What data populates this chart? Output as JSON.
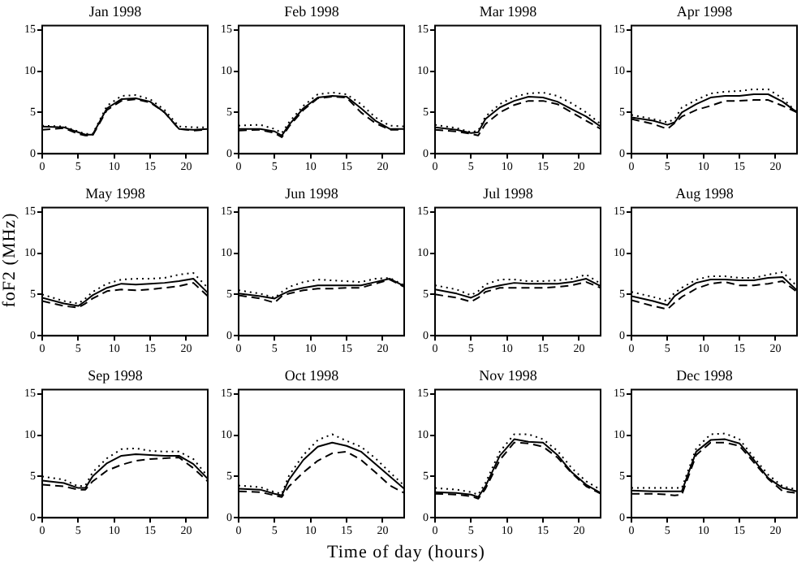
{
  "chart_data": [
    {
      "type": "line",
      "title": "Jan 1998",
      "x": [
        0,
        3,
        5,
        6,
        7,
        9,
        11,
        13,
        15,
        17,
        19,
        21,
        23
      ],
      "xlim": [
        0,
        23
      ],
      "xticks": [
        0,
        5,
        10,
        15,
        20
      ],
      "ylim": [
        0,
        15.5
      ],
      "yticks": [
        0,
        5,
        10,
        15
      ],
      "grid": false,
      "legend": false,
      "marker": "none",
      "series": [
        {
          "color": "#000000",
          "line_style": "solid",
          "values": [
            3.3,
            3.2,
            2.6,
            2.3,
            2.3,
            5.5,
            6.6,
            6.7,
            6.3,
            5.0,
            3.0,
            2.9,
            3.0
          ]
        },
        {
          "color": "#000000",
          "line_style": "dashed",
          "values": [
            2.9,
            3.1,
            2.4,
            2.2,
            2.2,
            5.3,
            6.4,
            6.6,
            6.2,
            5.0,
            3.0,
            2.8,
            2.9
          ]
        },
        {
          "color": "#000000",
          "line_style": "dotted",
          "values": [
            3.4,
            3.3,
            2.7,
            2.4,
            2.4,
            5.8,
            7.0,
            7.1,
            6.6,
            5.3,
            3.3,
            3.2,
            3.2
          ]
        }
      ]
    },
    {
      "type": "line",
      "title": "Feb 1998",
      "x": [
        0,
        3,
        5,
        6,
        7,
        9,
        11,
        13,
        15,
        17,
        19,
        21,
        23
      ],
      "xlim": [
        0,
        23
      ],
      "xticks": [
        0,
        5,
        10,
        15,
        20
      ],
      "ylim": [
        0,
        15.5
      ],
      "yticks": [
        0,
        5,
        10,
        15
      ],
      "grid": false,
      "legend": false,
      "marker": "none",
      "series": [
        {
          "color": "#000000",
          "line_style": "solid",
          "values": [
            3.0,
            3.0,
            2.7,
            2.2,
            3.5,
            5.5,
            6.8,
            7.0,
            6.9,
            5.5,
            4.0,
            3.0,
            3.0
          ]
        },
        {
          "color": "#000000",
          "line_style": "dashed",
          "values": [
            2.8,
            2.9,
            2.5,
            2.0,
            3.3,
            5.3,
            6.7,
            6.9,
            6.8,
            5.0,
            3.7,
            2.9,
            2.9
          ]
        },
        {
          "color": "#000000",
          "line_style": "dotted",
          "values": [
            3.4,
            3.5,
            3.0,
            2.5,
            3.8,
            5.8,
            7.2,
            7.4,
            7.2,
            6.0,
            4.4,
            3.4,
            3.3
          ]
        }
      ]
    },
    {
      "type": "line",
      "title": "Mar 1998",
      "x": [
        0,
        3,
        5,
        6,
        7,
        9,
        11,
        13,
        15,
        17,
        19,
        21,
        23
      ],
      "xlim": [
        0,
        23
      ],
      "xticks": [
        0,
        5,
        10,
        15,
        20
      ],
      "ylim": [
        0,
        15.5
      ],
      "yticks": [
        0,
        5,
        10,
        15
      ],
      "grid": false,
      "legend": false,
      "marker": "none",
      "series": [
        {
          "color": "#000000",
          "line_style": "solid",
          "values": [
            3.2,
            2.9,
            2.5,
            2.6,
            4.2,
            5.6,
            6.4,
            6.9,
            6.8,
            6.3,
            5.4,
            4.5,
            3.3
          ]
        },
        {
          "color": "#000000",
          "line_style": "dashed",
          "values": [
            2.9,
            2.7,
            2.4,
            2.2,
            3.6,
            5.0,
            5.9,
            6.4,
            6.4,
            6.0,
            5.0,
            4.0,
            3.0
          ]
        },
        {
          "color": "#000000",
          "line_style": "dotted",
          "values": [
            3.5,
            3.1,
            2.6,
            2.8,
            4.5,
            6.0,
            6.9,
            7.3,
            7.4,
            7.0,
            6.1,
            5.0,
            3.6
          ]
        }
      ]
    },
    {
      "type": "line",
      "title": "Apr 1998",
      "x": [
        0,
        3,
        5,
        6,
        7,
        9,
        11,
        13,
        15,
        17,
        19,
        21,
        23
      ],
      "xlim": [
        0,
        23
      ],
      "xticks": [
        0,
        5,
        10,
        15,
        20
      ],
      "ylim": [
        0,
        15.5
      ],
      "yticks": [
        0,
        5,
        10,
        15
      ],
      "grid": false,
      "legend": false,
      "marker": "none",
      "series": [
        {
          "color": "#000000",
          "line_style": "solid",
          "values": [
            4.4,
            4.0,
            3.5,
            3.8,
            5.0,
            6.0,
            6.8,
            7.0,
            7.0,
            7.2,
            7.2,
            6.3,
            5.0
          ]
        },
        {
          "color": "#000000",
          "line_style": "dashed",
          "values": [
            4.2,
            3.6,
            3.0,
            3.7,
            4.5,
            5.3,
            5.8,
            6.4,
            6.4,
            6.5,
            6.5,
            5.8,
            5.0
          ]
        },
        {
          "color": "#000000",
          "line_style": "dotted",
          "values": [
            4.7,
            4.2,
            3.8,
            4.2,
            5.6,
            6.5,
            7.3,
            7.5,
            7.6,
            7.8,
            7.8,
            6.7,
            5.0
          ]
        }
      ]
    },
    {
      "type": "line",
      "title": "May 1998",
      "ylabel": "foF2 (MHz)",
      "x": [
        0,
        3,
        5,
        6,
        7,
        9,
        11,
        13,
        15,
        17,
        19,
        21,
        23
      ],
      "xlim": [
        0,
        23
      ],
      "xticks": [
        0,
        5,
        10,
        15,
        20
      ],
      "ylim": [
        0,
        15.5
      ],
      "yticks": [
        0,
        5,
        10,
        15
      ],
      "grid": false,
      "legend": false,
      "marker": "none",
      "series": [
        {
          "color": "#000000",
          "line_style": "solid",
          "values": [
            4.6,
            3.9,
            3.6,
            4.2,
            4.9,
            5.8,
            6.3,
            6.2,
            6.3,
            6.4,
            6.6,
            6.9,
            5.2
          ]
        },
        {
          "color": "#000000",
          "line_style": "dashed",
          "values": [
            4.2,
            3.6,
            3.4,
            3.9,
            4.5,
            5.4,
            5.6,
            5.5,
            5.6,
            5.8,
            6.0,
            6.4,
            4.8
          ]
        },
        {
          "color": "#000000",
          "line_style": "dotted",
          "values": [
            5.0,
            4.2,
            3.9,
            4.5,
            5.3,
            6.3,
            6.8,
            6.9,
            6.9,
            7.0,
            7.4,
            7.6,
            5.8
          ]
        }
      ]
    },
    {
      "type": "line",
      "title": "Jun 1998",
      "x": [
        0,
        3,
        5,
        6,
        7,
        9,
        11,
        13,
        15,
        17,
        19,
        21,
        23
      ],
      "xlim": [
        0,
        23
      ],
      "xticks": [
        0,
        5,
        10,
        15,
        20
      ],
      "ylim": [
        0,
        15.5
      ],
      "yticks": [
        0,
        5,
        10,
        15
      ],
      "grid": false,
      "legend": false,
      "marker": "none",
      "series": [
        {
          "color": "#000000",
          "line_style": "solid",
          "values": [
            5.1,
            4.8,
            4.5,
            5.0,
            5.4,
            5.8,
            6.1,
            6.1,
            6.1,
            6.1,
            6.5,
            6.9,
            6.0
          ]
        },
        {
          "color": "#000000",
          "line_style": "dashed",
          "values": [
            4.9,
            4.5,
            4.0,
            4.8,
            5.1,
            5.5,
            5.7,
            5.7,
            5.8,
            5.8,
            6.3,
            6.8,
            5.9
          ]
        },
        {
          "color": "#000000",
          "line_style": "dotted",
          "values": [
            5.5,
            5.1,
            4.6,
            5.3,
            5.9,
            6.5,
            6.8,
            6.7,
            6.6,
            6.5,
            6.9,
            7.0,
            6.1
          ]
        }
      ]
    },
    {
      "type": "line",
      "title": "Jul 1998",
      "x": [
        0,
        3,
        5,
        6,
        7,
        9,
        11,
        13,
        15,
        17,
        19,
        21,
        23
      ],
      "xlim": [
        0,
        23
      ],
      "xticks": [
        0,
        5,
        10,
        15,
        20
      ],
      "ylim": [
        0,
        15.5
      ],
      "yticks": [
        0,
        5,
        10,
        15
      ],
      "grid": false,
      "legend": false,
      "marker": "none",
      "series": [
        {
          "color": "#000000",
          "line_style": "solid",
          "values": [
            5.6,
            5.1,
            4.6,
            5.0,
            5.7,
            6.1,
            6.4,
            6.3,
            6.3,
            6.3,
            6.5,
            6.9,
            6.0
          ]
        },
        {
          "color": "#000000",
          "line_style": "dashed",
          "values": [
            5.0,
            4.6,
            4.1,
            4.6,
            5.3,
            5.8,
            5.8,
            5.8,
            5.8,
            5.9,
            6.1,
            6.5,
            5.8
          ]
        },
        {
          "color": "#000000",
          "line_style": "dotted",
          "values": [
            6.1,
            5.6,
            4.9,
            5.4,
            6.2,
            6.8,
            6.8,
            6.6,
            6.6,
            6.7,
            6.9,
            7.4,
            6.3
          ]
        }
      ]
    },
    {
      "type": "line",
      "title": "Aug 1998",
      "x": [
        0,
        3,
        5,
        6,
        7,
        9,
        11,
        13,
        15,
        17,
        19,
        21,
        23
      ],
      "xlim": [
        0,
        23
      ],
      "xticks": [
        0,
        5,
        10,
        15,
        20
      ],
      "ylim": [
        0,
        15.5
      ],
      "yticks": [
        0,
        5,
        10,
        15
      ],
      "grid": false,
      "legend": false,
      "marker": "none",
      "series": [
        {
          "color": "#000000",
          "line_style": "solid",
          "values": [
            4.8,
            4.2,
            3.7,
            4.8,
            5.4,
            6.4,
            6.8,
            6.8,
            6.7,
            6.7,
            7.0,
            7.1,
            5.5
          ]
        },
        {
          "color": "#000000",
          "line_style": "dashed",
          "values": [
            4.3,
            3.6,
            3.2,
            4.0,
            4.7,
            5.7,
            6.3,
            6.5,
            6.1,
            6.1,
            6.3,
            6.6,
            5.3
          ]
        },
        {
          "color": "#000000",
          "line_style": "dotted",
          "values": [
            5.3,
            4.7,
            4.2,
            5.2,
            5.8,
            6.8,
            7.2,
            7.2,
            7.0,
            7.0,
            7.4,
            7.7,
            6.0
          ]
        }
      ]
    },
    {
      "type": "line",
      "title": "Sep 1998",
      "x": [
        0,
        3,
        5,
        6,
        7,
        9,
        11,
        13,
        15,
        17,
        19,
        21,
        23
      ],
      "xlim": [
        0,
        23
      ],
      "xticks": [
        0,
        5,
        10,
        15,
        20
      ],
      "ylim": [
        0,
        15.5
      ],
      "yticks": [
        0,
        5,
        10,
        15
      ],
      "grid": false,
      "legend": false,
      "marker": "none",
      "series": [
        {
          "color": "#000000",
          "line_style": "solid",
          "values": [
            4.5,
            4.2,
            3.6,
            3.6,
            5.0,
            6.6,
            7.5,
            7.7,
            7.6,
            7.5,
            7.5,
            6.5,
            4.7
          ]
        },
        {
          "color": "#000000",
          "line_style": "dashed",
          "values": [
            4.0,
            3.8,
            3.4,
            3.4,
            4.4,
            5.7,
            6.4,
            6.9,
            7.1,
            7.2,
            7.3,
            6.0,
            4.4
          ]
        },
        {
          "color": "#000000",
          "line_style": "dotted",
          "values": [
            5.0,
            4.6,
            3.8,
            3.9,
            5.5,
            7.2,
            8.3,
            8.4,
            8.1,
            8.0,
            8.0,
            7.1,
            5.0
          ]
        }
      ]
    },
    {
      "type": "line",
      "title": "Oct 1998",
      "xlabel": "Time of day (hours)",
      "x": [
        0,
        3,
        5,
        6,
        7,
        9,
        11,
        13,
        15,
        17,
        19,
        21,
        23
      ],
      "xlim": [
        0,
        23
      ],
      "xticks": [
        0,
        5,
        10,
        15,
        20
      ],
      "ylim": [
        0,
        15.5
      ],
      "yticks": [
        0,
        5,
        10,
        15
      ],
      "grid": false,
      "legend": false,
      "marker": "none",
      "series": [
        {
          "color": "#000000",
          "line_style": "solid",
          "values": [
            3.5,
            3.4,
            2.9,
            2.7,
            4.6,
            7.0,
            8.6,
            9.1,
            8.7,
            8.0,
            6.5,
            5.0,
            3.5
          ]
        },
        {
          "color": "#000000",
          "line_style": "dashed",
          "values": [
            3.2,
            3.1,
            2.7,
            2.5,
            3.8,
            5.5,
            6.9,
            7.8,
            8.0,
            7.0,
            5.5,
            3.9,
            3.0
          ]
        },
        {
          "color": "#000000",
          "line_style": "dotted",
          "values": [
            3.9,
            3.7,
            3.1,
            2.9,
            5.1,
            7.6,
            9.4,
            10.1,
            9.3,
            8.6,
            7.2,
            5.5,
            3.9
          ]
        }
      ]
    },
    {
      "type": "line",
      "title": "Nov 1998",
      "x": [
        0,
        3,
        5,
        6,
        7,
        9,
        11,
        13,
        15,
        17,
        19,
        21,
        23
      ],
      "xlim": [
        0,
        23
      ],
      "xticks": [
        0,
        5,
        10,
        15,
        20
      ],
      "ylim": [
        0,
        15.5
      ],
      "yticks": [
        0,
        5,
        10,
        15
      ],
      "grid": false,
      "legend": false,
      "marker": "none",
      "series": [
        {
          "color": "#000000",
          "line_style": "solid",
          "values": [
            3.1,
            3.0,
            2.8,
            2.5,
            3.8,
            7.5,
            9.5,
            9.2,
            9.1,
            7.6,
            5.5,
            4.0,
            3.0
          ]
        },
        {
          "color": "#000000",
          "line_style": "dashed",
          "values": [
            2.9,
            2.8,
            2.6,
            2.3,
            3.5,
            7.0,
            9.1,
            9.0,
            8.6,
            7.3,
            5.4,
            3.8,
            2.9
          ]
        },
        {
          "color": "#000000",
          "line_style": "dotted",
          "values": [
            3.6,
            3.4,
            3.1,
            2.8,
            4.2,
            8.0,
            10.1,
            10.1,
            9.5,
            8.1,
            6.0,
            4.4,
            3.4
          ]
        }
      ]
    },
    {
      "type": "line",
      "title": "Dec 1998",
      "x": [
        0,
        3,
        5,
        6,
        7,
        9,
        11,
        13,
        15,
        17,
        19,
        21,
        23
      ],
      "xlim": [
        0,
        23
      ],
      "xticks": [
        0,
        5,
        10,
        15,
        20
      ],
      "ylim": [
        0,
        15.5
      ],
      "yticks": [
        0,
        5,
        10,
        15
      ],
      "grid": false,
      "legend": false,
      "marker": "none",
      "series": [
        {
          "color": "#000000",
          "line_style": "solid",
          "values": [
            3.3,
            3.2,
            3.2,
            3.2,
            3.2,
            8.0,
            9.4,
            9.5,
            9.0,
            7.0,
            4.8,
            3.6,
            3.2
          ]
        },
        {
          "color": "#000000",
          "line_style": "dashed",
          "values": [
            2.9,
            2.9,
            2.8,
            2.7,
            2.8,
            7.6,
            9.1,
            9.1,
            8.7,
            6.7,
            4.7,
            3.2,
            3.0
          ]
        },
        {
          "color": "#000000",
          "line_style": "dotted",
          "values": [
            3.6,
            3.6,
            3.6,
            3.6,
            3.6,
            8.4,
            10.1,
            10.2,
            9.5,
            7.3,
            5.2,
            3.8,
            3.4
          ]
        }
      ]
    }
  ]
}
